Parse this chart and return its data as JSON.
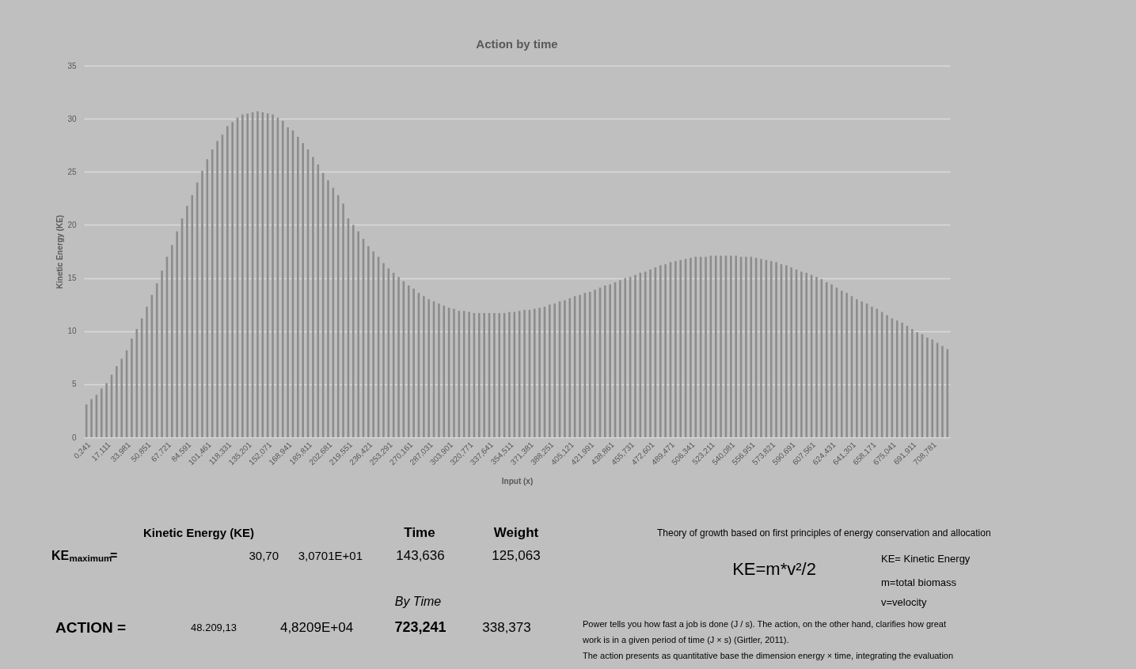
{
  "chart_data": {
    "type": "bar",
    "title": "Action by time",
    "xlabel": "Input (x)",
    "ylabel": "Kinetic Energy (KE)",
    "color": "#8c8c8c",
    "grid": "y",
    "ylim": [
      0,
      35
    ],
    "yticks": [
      0,
      5,
      10,
      15,
      20,
      25,
      30,
      35
    ],
    "categories": [
      "0,241",
      null,
      null,
      null,
      "17,111",
      null,
      null,
      null,
      "33,981",
      null,
      null,
      null,
      "50,851",
      null,
      null,
      null,
      "67,721",
      null,
      null,
      null,
      "84,591",
      null,
      null,
      null,
      "101,461",
      null,
      null,
      null,
      "118,331",
      null,
      null,
      null,
      "135,201",
      null,
      null,
      null,
      "152,071",
      null,
      null,
      null,
      "168,941",
      null,
      null,
      null,
      "185,811",
      null,
      null,
      null,
      "202,681",
      null,
      null,
      null,
      "219,551",
      null,
      null,
      null,
      "236,421",
      null,
      null,
      null,
      "253,291",
      null,
      null,
      null,
      "270,161",
      null,
      null,
      null,
      "287,031",
      null,
      null,
      null,
      "303,901",
      null,
      null,
      null,
      "320,771",
      null,
      null,
      null,
      "337,641",
      null,
      null,
      null,
      "354,511",
      null,
      null,
      null,
      "371,381",
      null,
      null,
      null,
      "388,251",
      null,
      null,
      null,
      "405,121",
      null,
      null,
      null,
      "421,991",
      null,
      null,
      null,
      "438,861",
      null,
      null,
      null,
      "455,731",
      null,
      null,
      null,
      "472,601",
      null,
      null,
      null,
      "489,471",
      null,
      null,
      null,
      "506,341",
      null,
      null,
      null,
      "523,211",
      null,
      null,
      null,
      "540,081",
      null,
      null,
      null,
      "556,951",
      null,
      null,
      null,
      "573,821",
      null,
      null,
      null,
      "590,691",
      null,
      null,
      null,
      "607,561",
      null,
      null,
      null,
      "624,431",
      null,
      null,
      null,
      "641,301",
      null,
      null,
      null,
      "658,171",
      null,
      null,
      null,
      "675,041",
      null,
      null,
      null,
      "691,911",
      null,
      null,
      null,
      "708,781",
      null,
      null,
      null
    ],
    "values": [
      3.1,
      3.6,
      4.0,
      4.6,
      5.1,
      5.9,
      6.7,
      7.4,
      8.2,
      9.3,
      10.2,
      11.2,
      12.3,
      13.4,
      14.5,
      15.7,
      17.0,
      18.1,
      19.4,
      20.6,
      21.8,
      22.8,
      24.0,
      25.1,
      26.2,
      27.1,
      27.9,
      28.5,
      29.3,
      29.7,
      30.1,
      30.4,
      30.5,
      30.6,
      30.7,
      30.6,
      30.5,
      30.4,
      30.1,
      29.8,
      29.2,
      28.9,
      28.3,
      27.7,
      27.1,
      26.4,
      25.7,
      24.9,
      24.2,
      23.5,
      22.8,
      22.0,
      20.6,
      20.0,
      19.4,
      18.7,
      18.0,
      17.5,
      17.0,
      16.4,
      15.9,
      15.5,
      15.1,
      14.7,
      14.3,
      14.0,
      13.6,
      13.3,
      13.0,
      12.8,
      12.6,
      12.4,
      12.2,
      12.1,
      11.9,
      11.9,
      11.8,
      11.7,
      11.7,
      11.7,
      11.7,
      11.7,
      11.7,
      11.7,
      11.8,
      11.8,
      11.9,
      12.0,
      12.0,
      12.1,
      12.2,
      12.3,
      12.5,
      12.6,
      12.8,
      12.9,
      13.1,
      13.3,
      13.4,
      13.6,
      13.7,
      13.9,
      14.1,
      14.3,
      14.4,
      14.6,
      14.8,
      15.0,
      15.1,
      15.3,
      15.5,
      15.6,
      15.8,
      16.0,
      16.2,
      16.3,
      16.5,
      16.6,
      16.7,
      16.8,
      16.9,
      17.0,
      17.0,
      17.0,
      17.1,
      17.1,
      17.1,
      17.1,
      17.1,
      17.1,
      17.0,
      17.0,
      17.0,
      16.9,
      16.8,
      16.7,
      16.6,
      16.5,
      16.3,
      16.2,
      16.0,
      15.8,
      15.6,
      15.5,
      15.3,
      15.1,
      14.9,
      14.6,
      14.4,
      14.1,
      13.8,
      13.6,
      13.3,
      13.0,
      12.8,
      12.6,
      12.3,
      12.1,
      11.8,
      11.5,
      11.2,
      11.0,
      10.8,
      10.5,
      10.2,
      9.9,
      9.7,
      9.4,
      9.2,
      8.9,
      8.6,
      8.3
    ],
    "annotations": [
      "Kinetic Energy (KE)",
      "Time",
      "Weight",
      "KE$_{maximum}$=",
      "30,70",
      "3,0701E+01",
      "143,636",
      "125,063",
      "By Time",
      "ACTION =",
      "48.209,13",
      "4,8209E+04",
      "723,241",
      "338,373",
      "Theory of growth based on first principles of energy conservation and allocation",
      "KE=m*v²/2",
      "KE= Kinetic Energy",
      "m=total biomass",
      "v=velocity",
      "Power tells you how fast a job is done (J / s). The action, on the other hand, clarifies how great",
      "work is in a given period of time (J × s) (Girtler, 2011).",
      "The action presents as quantitative base the dimension energy × time, integrating the evaluation"
    ]
  }
}
